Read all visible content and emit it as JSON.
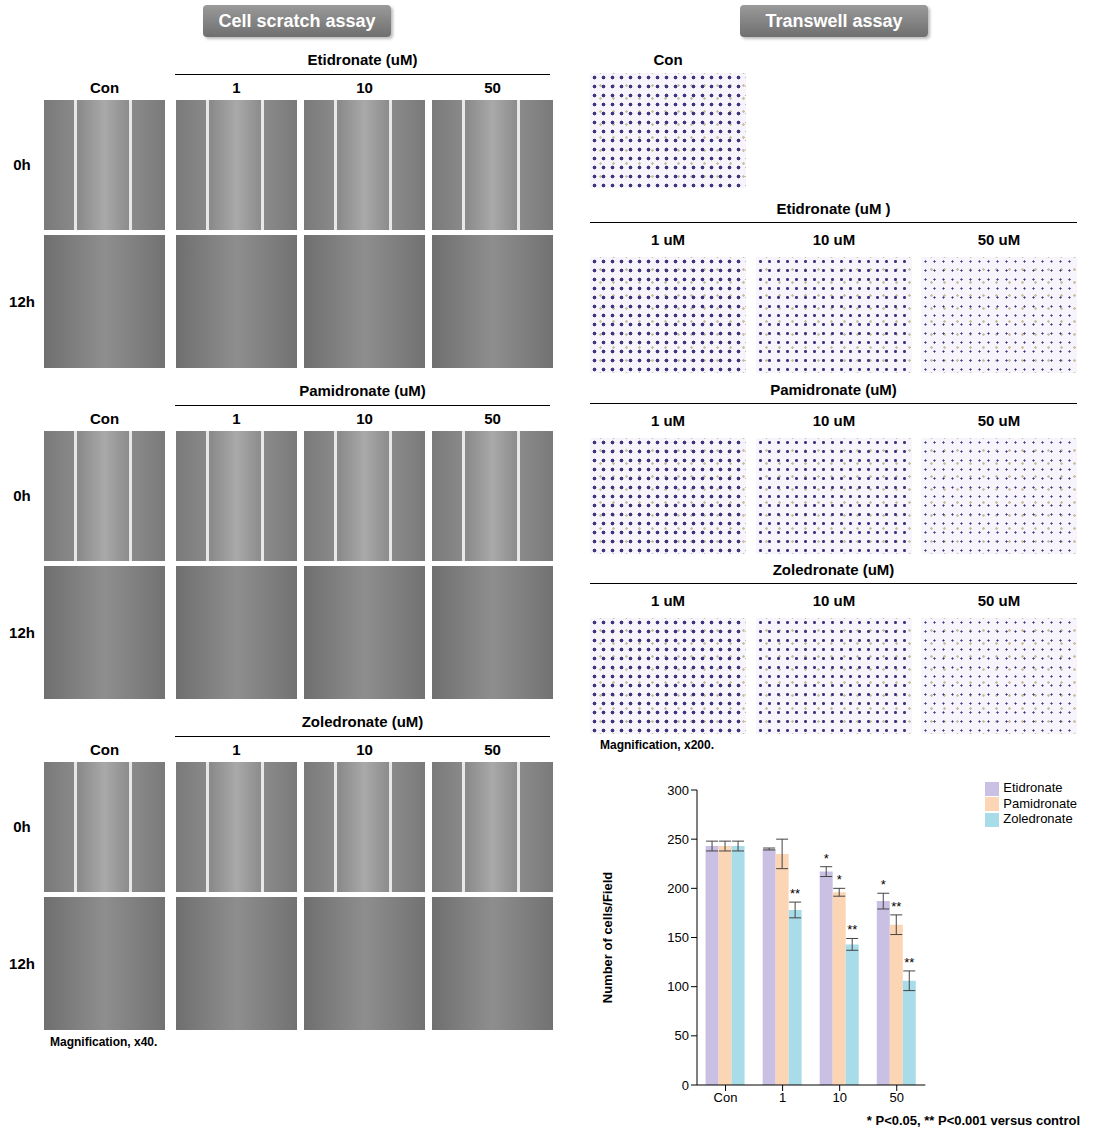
{
  "headers": {
    "scratch": "Cell scratch assay",
    "transwell": "Transwell assay"
  },
  "scratch_assay": {
    "control": "Con",
    "times": [
      "0h",
      "12h"
    ],
    "groups": [
      {
        "title": "Etidronate (uM)",
        "doses": [
          "1",
          "10",
          "50"
        ]
      },
      {
        "title": "Pamidronate (uM)",
        "doses": [
          "1",
          "10",
          "50"
        ]
      },
      {
        "title": "Zoledronate (uM)",
        "doses": [
          "1",
          "10",
          "50"
        ]
      }
    ],
    "magnification": "Magnification, x40."
  },
  "transwell_assay": {
    "control": "Con",
    "groups": [
      {
        "title": "Etidronate (uM )",
        "doses": [
          "1 uM",
          "10 uM",
          "50 uM"
        ]
      },
      {
        "title": "Pamidronate (uM)",
        "doses": [
          "1 uM",
          "10 uM",
          "50 uM"
        ]
      },
      {
        "title": "Zoledronate (uM)",
        "doses": [
          "1 uM",
          "10 uM",
          "50 uM"
        ]
      }
    ],
    "magnification": "Magnification, x200."
  },
  "chart_data": {
    "type": "bar",
    "y_label": "Number of cells/Field",
    "categories": [
      "Con",
      "1",
      "10",
      "50"
    ],
    "series": [
      {
        "name": "Etidronate",
        "color": "#c9c0e3",
        "values": [
          243,
          240,
          217,
          187
        ],
        "errors": [
          5,
          1,
          5,
          8
        ],
        "significance": [
          null,
          null,
          "*",
          "*"
        ]
      },
      {
        "name": "Pamidronate",
        "color": "#fcd5b5",
        "values": [
          243,
          235,
          196,
          163
        ],
        "errors": [
          5,
          15,
          4,
          10
        ],
        "significance": [
          null,
          null,
          "*",
          "**"
        ]
      },
      {
        "name": "Zoledronate",
        "color": "#a8dce8",
        "values": [
          243,
          178,
          143,
          106
        ],
        "errors": [
          5,
          8,
          6,
          10
        ],
        "significance": [
          null,
          "**",
          "**",
          "**"
        ]
      }
    ],
    "ylim": [
      0,
      300
    ],
    "yticks": [
      0,
      50,
      100,
      150,
      200,
      250,
      300
    ],
    "grid": false,
    "legend": "upper right",
    "footnote": "* P<0.05, ** P<0.001 versus control"
  }
}
